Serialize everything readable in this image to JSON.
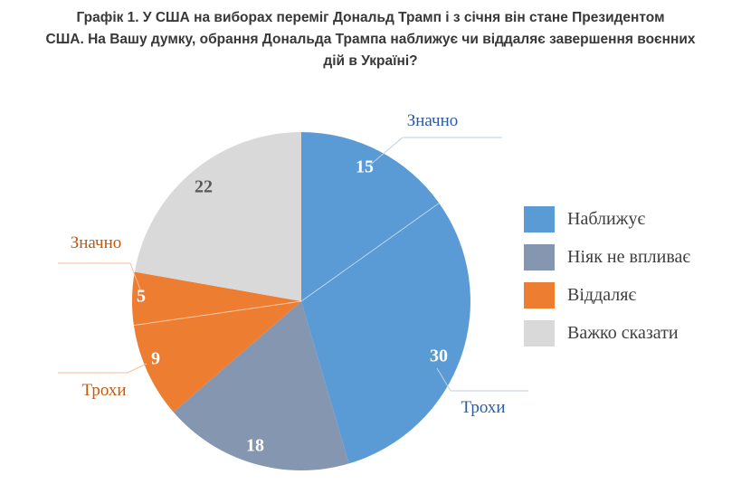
{
  "title_lines": [
    "Графік 1. У США на виборах переміг Дональд Трамп і з січня він стане Президентом",
    "США. На Вашу думку, обрання Дональда Трампа наближує чи віддаляє завершення воєнних",
    "дій в Україні?"
  ],
  "chart_data": {
    "type": "pie",
    "title": "Графік 1. У США на виборах переміг Дональд Трамп і з січня він стане Президентом США. На Вашу думку, обрання Дональда Трампа наближує чи віддаляє завершення воєнних дій в Україні?",
    "start_angle_deg": 0,
    "direction": "clockwise",
    "segments": [
      {
        "legend_group": "Наближує",
        "sub_label": "Значно",
        "value": 15,
        "color": "#5B9BD5",
        "value_label_color": "#FFFFFF"
      },
      {
        "legend_group": "Наближує",
        "sub_label": "Трохи",
        "value": 30,
        "color": "#5B9BD5",
        "value_label_color": "#FFFFFF"
      },
      {
        "legend_group": "Ніяк не впливає",
        "sub_label": "",
        "value": 18,
        "color": "#8496B0",
        "value_label_color": "#FFFFFF"
      },
      {
        "legend_group": "Віддаляє",
        "sub_label": "Трохи",
        "value": 9,
        "color": "#ED7D31",
        "value_label_color": "#FFFFFF"
      },
      {
        "legend_group": "Віддаляє",
        "sub_label": "Значно",
        "value": 5,
        "color": "#ED7D31",
        "value_label_color": "#FFFFFF"
      },
      {
        "legend_group": "Важко сказати",
        "sub_label": "",
        "value": 22,
        "color": "#D9D9D9",
        "value_label_color": "#595959"
      }
    ],
    "callouts": [
      {
        "text": "Значно",
        "target_value": 15,
        "color": "#2A5CA5"
      },
      {
        "text": "Трохи",
        "target_value": 30,
        "color": "#2A5CA5"
      },
      {
        "text": "Значно",
        "target_value": 5,
        "color": "#C05A11"
      },
      {
        "text": "Трохи",
        "target_value": 9,
        "color": "#C05A11"
      }
    ],
    "legend": {
      "position": "right",
      "entries": [
        {
          "label": "Наближує",
          "color": "#5B9BD5"
        },
        {
          "label": "Ніяк не впливає",
          "color": "#8496B0"
        },
        {
          "label": "Віддаляє",
          "color": "#ED7D31"
        },
        {
          "label": "Важко сказати",
          "color": "#D9D9D9"
        }
      ]
    }
  }
}
